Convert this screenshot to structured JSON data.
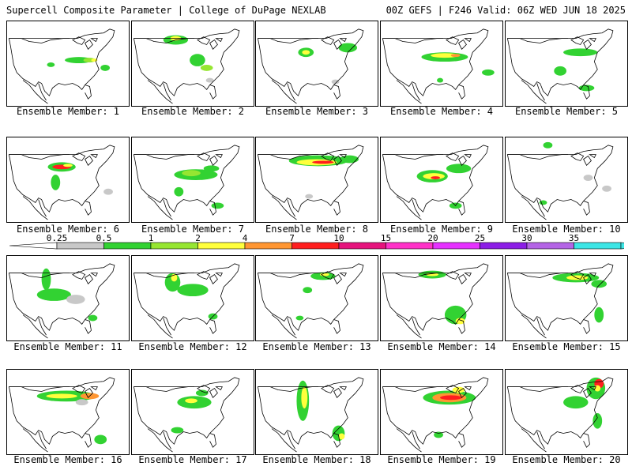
{
  "header": {
    "left": "Supercell Composite Parameter | College of DuPage NEXLAB",
    "right": "00Z GEFS | F246 Valid: 06Z WED JUN 18 2025"
  },
  "members": [
    "Ensemble Member: 1",
    "Ensemble Member: 2",
    "Ensemble Member: 3",
    "Ensemble Member: 4",
    "Ensemble Member: 5",
    "Ensemble Member: 6",
    "Ensemble Member: 7",
    "Ensemble Member: 8",
    "Ensemble Member: 9",
    "Ensemble Member: 10",
    "Ensemble Member: 11",
    "Ensemble Member: 12",
    "Ensemble Member: 13",
    "Ensemble Member: 14",
    "Ensemble Member: 15",
    "Ensemble Member: 16",
    "Ensemble Member: 17",
    "Ensemble Member: 18",
    "Ensemble Member: 19",
    "Ensemble Member: 20"
  ],
  "colorbar": {
    "ticks": [
      "0.25",
      "0.5",
      "1",
      "2",
      "4",
      "7",
      "10",
      "15",
      "20",
      "25",
      "30",
      "35"
    ],
    "colors": [
      "#c8c8c8",
      "#32d232",
      "#96e632",
      "#ffff3c",
      "#ff9632",
      "#ff1e1e",
      "#e6147d",
      "#ff32c8",
      "#e632ff",
      "#8c1ee6",
      "#b464e6",
      "#3ce6e6"
    ]
  },
  "colors": {
    "gray": "#c8c8c8",
    "green": "#32d232",
    "light_green": "#96e632",
    "yellow": "#ffff3c",
    "orange": "#ff9632",
    "red": "#ff1e1e"
  }
}
